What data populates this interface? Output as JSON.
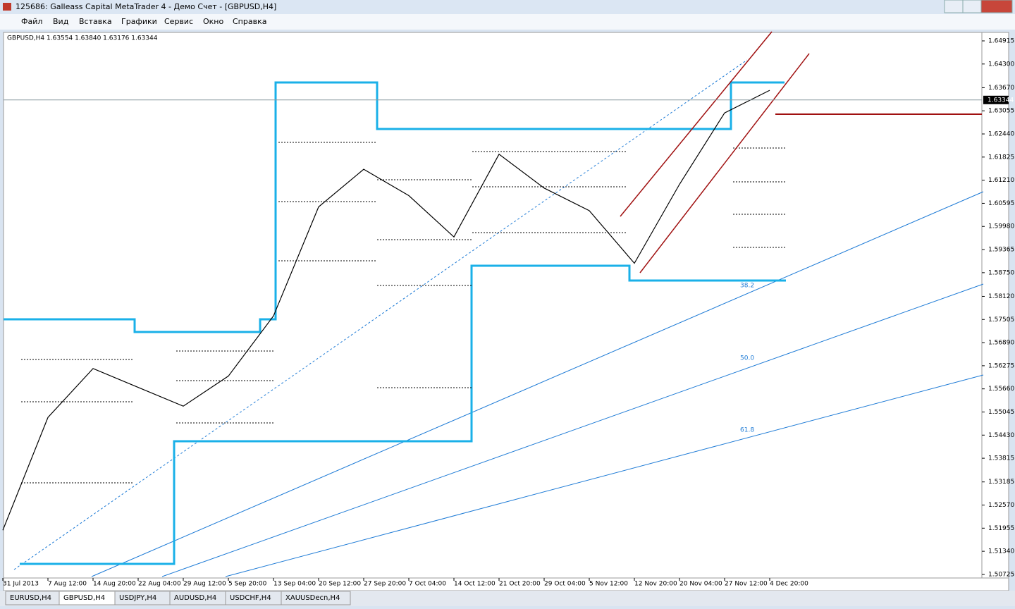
{
  "window": {
    "title": "125686: Galleass Capital MetaTrader 4 - Демо Счет - [GBPUSD,H4]"
  },
  "menu": [
    "Файл",
    "Вид",
    "Вставка",
    "Графики",
    "Сервис",
    "Окно",
    "Справка"
  ],
  "chart_data": {
    "type": "line",
    "title": "GBPUSD,H4  1.63554 1.63840 1.63176 1.63344",
    "categories": [
      "31 Jul 2013",
      "7 Aug 12:00",
      "14 Aug 20:00",
      "22 Aug 04:00",
      "29 Aug 12:00",
      "5 Sep 20:00",
      "13 Sep 04:00",
      "20 Sep 12:00",
      "27 Sep 20:00",
      "7 Oct 04:00",
      "14 Oct 12:00",
      "21 Oct 20:00",
      "29 Oct 04:00",
      "5 Nov 12:00",
      "12 Nov 20:00",
      "20 Nov 04:00",
      "27 Nov 12:00",
      "4 Dec 20:00"
    ],
    "values": [
      1.519,
      1.549,
      1.562,
      1.557,
      1.552,
      1.56,
      1.576,
      1.605,
      1.615,
      1.608,
      1.597,
      1.619,
      1.61,
      1.604,
      1.59,
      1.611,
      1.63,
      1.636
    ],
    "color": "#000000",
    "last_price": 1.63344,
    "ylim": [
      1.5063,
      1.6514
    ],
    "yticks": [
      1.64915,
      {
        "value": 1.643,
        "label": "1.64300"
      },
      {
        "value": 1.6367,
        "label": "1.63670"
      },
      1.63055,
      {
        "value": 1.6244,
        "label": "1.62440"
      },
      1.61825,
      {
        "value": 1.6121,
        "label": "1.61210"
      },
      1.60595,
      {
        "value": 1.5998,
        "label": "1.59980"
      },
      1.59365,
      {
        "value": 1.5875,
        "label": "1.58750"
      },
      {
        "value": 1.5812,
        "label": "1.58120"
      },
      1.57505,
      {
        "value": 1.5689,
        "label": "1.56890"
      },
      1.56275,
      {
        "value": 1.5566,
        "label": "1.55660"
      },
      1.55045,
      {
        "value": 1.5443,
        "label": "1.54430"
      },
      1.53815,
      1.53185,
      {
        "value": 1.5257,
        "label": "1.52570"
      },
      1.51955,
      {
        "value": 1.5134,
        "label": "1.51340"
      },
      1.50725
    ],
    "fib_labels": [
      "38.2",
      "50.0",
      "61.8"
    ]
  },
  "tabs": [
    "EURUSD,H4",
    "GBPUSD,H4",
    "USDJPY,H4",
    "AUDUSD,H4",
    "USDCHF,H4",
    "XAUUSDecn,H4"
  ]
}
